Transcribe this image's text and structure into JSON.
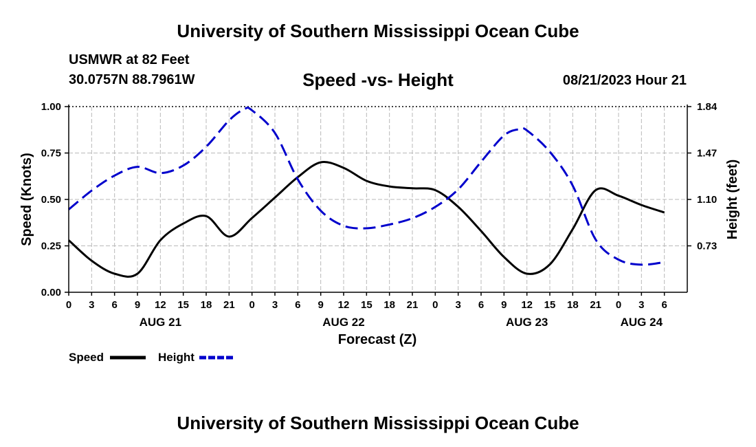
{
  "header": {
    "title": "University of Southern Mississippi Ocean Cube",
    "station": "USMWR at 82 Feet",
    "coordinates": "30.0757N  88.7961W",
    "subtitle": "Speed -vs- Height",
    "datetime": "08/21/2023 Hour 21",
    "footer_title": "University of Southern Mississippi Ocean Cube"
  },
  "chart_data": {
    "type": "line",
    "title": "Speed -vs- Height",
    "xlabel": "Forecast (Z)",
    "ylabel_left": "Speed (Knots)",
    "ylabel_right": "Height (feet)",
    "x_range": [
      0,
      81
    ],
    "x_units": "hours from AUG 21 00Z",
    "x_ticks": [
      {
        "x": 0,
        "label": "0"
      },
      {
        "x": 3,
        "label": "3"
      },
      {
        "x": 6,
        "label": "6"
      },
      {
        "x": 9,
        "label": "9"
      },
      {
        "x": 12,
        "label": "12"
      },
      {
        "x": 15,
        "label": "15"
      },
      {
        "x": 18,
        "label": "18"
      },
      {
        "x": 21,
        "label": "21"
      },
      {
        "x": 24,
        "label": "0"
      },
      {
        "x": 27,
        "label": "3"
      },
      {
        "x": 30,
        "label": "6"
      },
      {
        "x": 33,
        "label": "9"
      },
      {
        "x": 36,
        "label": "12"
      },
      {
        "x": 39,
        "label": "15"
      },
      {
        "x": 42,
        "label": "18"
      },
      {
        "x": 45,
        "label": "21"
      },
      {
        "x": 48,
        "label": "0"
      },
      {
        "x": 51,
        "label": "3"
      },
      {
        "x": 54,
        "label": "6"
      },
      {
        "x": 57,
        "label": "9"
      },
      {
        "x": 60,
        "label": "12"
      },
      {
        "x": 63,
        "label": "15"
      },
      {
        "x": 66,
        "label": "18"
      },
      {
        "x": 69,
        "label": "21"
      },
      {
        "x": 72,
        "label": "0"
      },
      {
        "x": 75,
        "label": "3"
      },
      {
        "x": 78,
        "label": "6"
      }
    ],
    "day_labels": [
      {
        "x": 12,
        "label": "AUG 21"
      },
      {
        "x": 36,
        "label": "AUG 22"
      },
      {
        "x": 60,
        "label": "AUG 23"
      },
      {
        "x": 75,
        "label": "AUG 24"
      }
    ],
    "y_left": {
      "range": [
        0,
        1
      ],
      "ticks": [
        0,
        0.25,
        0.5,
        0.75,
        1.0
      ],
      "tick_labels": [
        "0.00",
        "0.25",
        "0.50",
        "0.75",
        "1.00"
      ]
    },
    "y_right": {
      "range": [
        0.36,
        1.84
      ],
      "ticks": [
        0.73,
        1.1,
        1.47,
        1.84
      ],
      "tick_labels": [
        "0.73",
        "1.10",
        "1.47",
        "1.84"
      ]
    },
    "grid": true,
    "series": [
      {
        "name": "Speed",
        "axis": "left",
        "color": "#000000",
        "style": "solid",
        "points": [
          [
            0,
            0.28
          ],
          [
            3,
            0.17
          ],
          [
            6,
            0.1
          ],
          [
            9,
            0.1
          ],
          [
            12,
            0.28
          ],
          [
            15,
            0.37
          ],
          [
            18,
            0.41
          ],
          [
            21,
            0.3
          ],
          [
            24,
            0.4
          ],
          [
            27,
            0.51
          ],
          [
            30,
            0.62
          ],
          [
            33,
            0.7
          ],
          [
            36,
            0.67
          ],
          [
            39,
            0.6
          ],
          [
            42,
            0.57
          ],
          [
            45,
            0.56
          ],
          [
            48,
            0.55
          ],
          [
            51,
            0.46
          ],
          [
            54,
            0.33
          ],
          [
            57,
            0.19
          ],
          [
            60,
            0.1
          ],
          [
            63,
            0.15
          ],
          [
            66,
            0.34
          ],
          [
            69,
            0.55
          ],
          [
            72,
            0.52
          ],
          [
            75,
            0.47
          ],
          [
            78,
            0.43
          ]
        ]
      },
      {
        "name": "Height",
        "axis": "right",
        "color": "#0000cc",
        "style": "dashed",
        "points": [
          [
            0,
            1.02
          ],
          [
            3,
            1.17
          ],
          [
            6,
            1.29
          ],
          [
            9,
            1.36
          ],
          [
            12,
            1.31
          ],
          [
            15,
            1.37
          ],
          [
            18,
            1.52
          ],
          [
            21,
            1.73
          ],
          [
            23,
            1.82
          ],
          [
            24,
            1.81
          ],
          [
            27,
            1.63
          ],
          [
            30,
            1.26
          ],
          [
            33,
            1.01
          ],
          [
            36,
            0.89
          ],
          [
            39,
            0.87
          ],
          [
            42,
            0.9
          ],
          [
            45,
            0.95
          ],
          [
            48,
            1.04
          ],
          [
            51,
            1.18
          ],
          [
            54,
            1.4
          ],
          [
            57,
            1.61
          ],
          [
            59,
            1.66
          ],
          [
            60,
            1.65
          ],
          [
            63,
            1.48
          ],
          [
            66,
            1.21
          ],
          [
            69,
            0.78
          ],
          [
            72,
            0.62
          ],
          [
            75,
            0.58
          ],
          [
            78,
            0.6
          ]
        ]
      }
    ],
    "legend": [
      {
        "label": "Speed",
        "color": "#000000",
        "style": "solid"
      },
      {
        "label": "Height",
        "color": "#0000cc",
        "style": "dashed"
      }
    ],
    "legend_position": "bottom-left"
  }
}
